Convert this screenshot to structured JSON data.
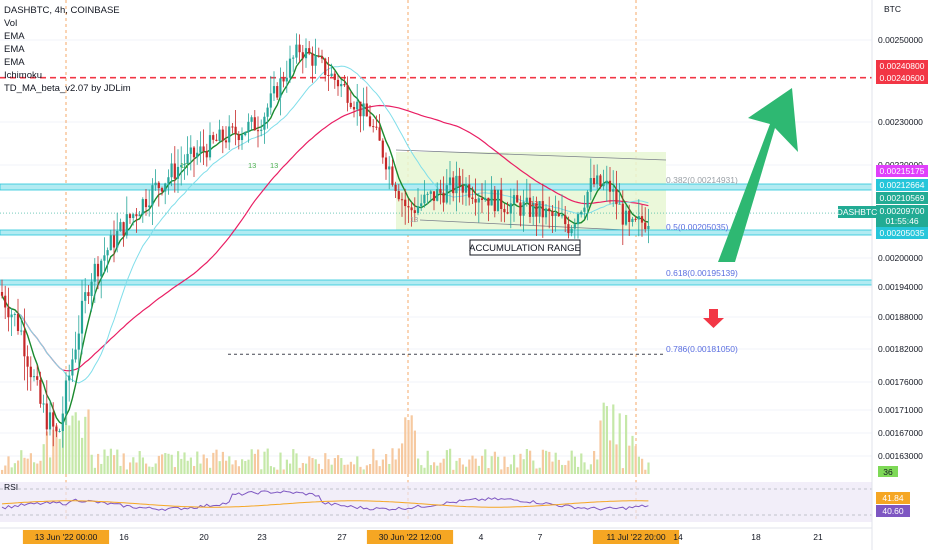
{
  "legend": {
    "title": "DASHBTC, 4h, COINBASE",
    "indicators": [
      "Vol",
      "EMA",
      "EMA",
      "EMA",
      "Ichimoku",
      "TD_MA_beta_v2.07 by JDLim"
    ]
  },
  "chart_data": {
    "type": "candlestick",
    "symbol": "DASHBTC",
    "ylabel": "BTC",
    "ylim": [
      0.0016,
      0.0026
    ],
    "y_ticks": [
      "0.00250000",
      "0.00230000",
      "0.00220000",
      "0.00205000",
      "0.00200000",
      "0.00194000",
      "0.00188000",
      "0.00182000",
      "0.00176000",
      "0.00171000",
      "0.00167000",
      "0.00163000"
    ],
    "x_ticks": [
      "13 Jun '22  00:00",
      "16",
      "20",
      "23",
      "27",
      "30 Jun '22  12:00",
      "4",
      "7",
      "11 Jul '22  20:00",
      "14",
      "18",
      "21"
    ],
    "price_tags": [
      {
        "value": "0.00240800",
        "color": "#f23645"
      },
      {
        "value": "0.00240600",
        "color": "#f23645"
      },
      {
        "value": "0.00215175",
        "color": "#e040fb"
      },
      {
        "value": "0.00212664",
        "color": "#26c6da"
      },
      {
        "value": "0.00210569",
        "color": "#22ab94"
      },
      {
        "value": "0.00209700",
        "color": "#22ab94"
      },
      {
        "value": "01:55:46",
        "color": "#22ab94"
      },
      {
        "value": "0.00205035",
        "color": "#26c6da"
      }
    ],
    "symbol_tag": "DASHBTC",
    "volume_tag": "36",
    "fib_levels": [
      {
        "label": "0.382(0.00214931)",
        "ratio": 0.382,
        "price": 0.00214931
      },
      {
        "label": "0.5(0.00205035)",
        "ratio": 0.5,
        "price": 0.00205035
      },
      {
        "label": "0.618(0.00195139)",
        "ratio": 0.618,
        "price": 0.00195139
      },
      {
        "label": "0.786(0.00181050)",
        "ratio": 0.786,
        "price": 0.0018105
      }
    ],
    "resistance_level": 0.002408,
    "annotation": "ACCUMULATION RANGE",
    "td_counts": [
      "13",
      "13",
      "13",
      "13",
      "13"
    ],
    "rsi": {
      "label": "RSI",
      "values": [
        "41.84",
        "40.60"
      ]
    }
  }
}
